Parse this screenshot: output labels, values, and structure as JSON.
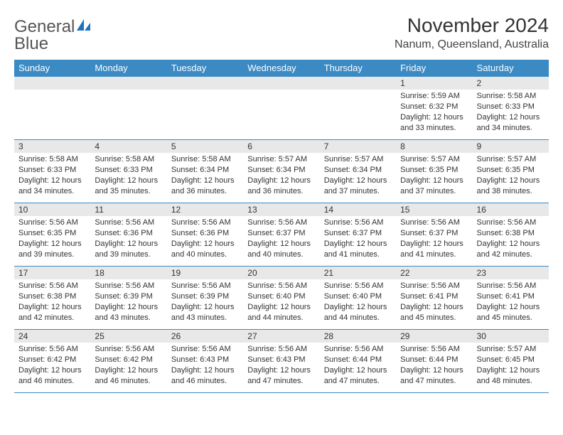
{
  "logo": {
    "word1": "General",
    "word2": "Blue"
  },
  "colors": {
    "brand_blue": "#3b8ac4",
    "logo_blue": "#1e73be",
    "band_gray": "#e8e8e8",
    "text": "#333333"
  },
  "title": "November 2024",
  "location": "Nanum, Queensland, Australia",
  "days_of_week": [
    "Sunday",
    "Monday",
    "Tuesday",
    "Wednesday",
    "Thursday",
    "Friday",
    "Saturday"
  ],
  "weeks": [
    [
      {
        "empty": true
      },
      {
        "empty": true
      },
      {
        "empty": true
      },
      {
        "empty": true
      },
      {
        "empty": true
      },
      {
        "date": "1",
        "sunrise": "Sunrise: 5:59 AM",
        "sunset": "Sunset: 6:32 PM",
        "daylight1": "Daylight: 12 hours",
        "daylight2": "and 33 minutes."
      },
      {
        "date": "2",
        "sunrise": "Sunrise: 5:58 AM",
        "sunset": "Sunset: 6:33 PM",
        "daylight1": "Daylight: 12 hours",
        "daylight2": "and 34 minutes."
      }
    ],
    [
      {
        "date": "3",
        "sunrise": "Sunrise: 5:58 AM",
        "sunset": "Sunset: 6:33 PM",
        "daylight1": "Daylight: 12 hours",
        "daylight2": "and 34 minutes."
      },
      {
        "date": "4",
        "sunrise": "Sunrise: 5:58 AM",
        "sunset": "Sunset: 6:33 PM",
        "daylight1": "Daylight: 12 hours",
        "daylight2": "and 35 minutes."
      },
      {
        "date": "5",
        "sunrise": "Sunrise: 5:58 AM",
        "sunset": "Sunset: 6:34 PM",
        "daylight1": "Daylight: 12 hours",
        "daylight2": "and 36 minutes."
      },
      {
        "date": "6",
        "sunrise": "Sunrise: 5:57 AM",
        "sunset": "Sunset: 6:34 PM",
        "daylight1": "Daylight: 12 hours",
        "daylight2": "and 36 minutes."
      },
      {
        "date": "7",
        "sunrise": "Sunrise: 5:57 AM",
        "sunset": "Sunset: 6:34 PM",
        "daylight1": "Daylight: 12 hours",
        "daylight2": "and 37 minutes."
      },
      {
        "date": "8",
        "sunrise": "Sunrise: 5:57 AM",
        "sunset": "Sunset: 6:35 PM",
        "daylight1": "Daylight: 12 hours",
        "daylight2": "and 37 minutes."
      },
      {
        "date": "9",
        "sunrise": "Sunrise: 5:57 AM",
        "sunset": "Sunset: 6:35 PM",
        "daylight1": "Daylight: 12 hours",
        "daylight2": "and 38 minutes."
      }
    ],
    [
      {
        "date": "10",
        "sunrise": "Sunrise: 5:56 AM",
        "sunset": "Sunset: 6:35 PM",
        "daylight1": "Daylight: 12 hours",
        "daylight2": "and 39 minutes."
      },
      {
        "date": "11",
        "sunrise": "Sunrise: 5:56 AM",
        "sunset": "Sunset: 6:36 PM",
        "daylight1": "Daylight: 12 hours",
        "daylight2": "and 39 minutes."
      },
      {
        "date": "12",
        "sunrise": "Sunrise: 5:56 AM",
        "sunset": "Sunset: 6:36 PM",
        "daylight1": "Daylight: 12 hours",
        "daylight2": "and 40 minutes."
      },
      {
        "date": "13",
        "sunrise": "Sunrise: 5:56 AM",
        "sunset": "Sunset: 6:37 PM",
        "daylight1": "Daylight: 12 hours",
        "daylight2": "and 40 minutes."
      },
      {
        "date": "14",
        "sunrise": "Sunrise: 5:56 AM",
        "sunset": "Sunset: 6:37 PM",
        "daylight1": "Daylight: 12 hours",
        "daylight2": "and 41 minutes."
      },
      {
        "date": "15",
        "sunrise": "Sunrise: 5:56 AM",
        "sunset": "Sunset: 6:37 PM",
        "daylight1": "Daylight: 12 hours",
        "daylight2": "and 41 minutes."
      },
      {
        "date": "16",
        "sunrise": "Sunrise: 5:56 AM",
        "sunset": "Sunset: 6:38 PM",
        "daylight1": "Daylight: 12 hours",
        "daylight2": "and 42 minutes."
      }
    ],
    [
      {
        "date": "17",
        "sunrise": "Sunrise: 5:56 AM",
        "sunset": "Sunset: 6:38 PM",
        "daylight1": "Daylight: 12 hours",
        "daylight2": "and 42 minutes."
      },
      {
        "date": "18",
        "sunrise": "Sunrise: 5:56 AM",
        "sunset": "Sunset: 6:39 PM",
        "daylight1": "Daylight: 12 hours",
        "daylight2": "and 43 minutes."
      },
      {
        "date": "19",
        "sunrise": "Sunrise: 5:56 AM",
        "sunset": "Sunset: 6:39 PM",
        "daylight1": "Daylight: 12 hours",
        "daylight2": "and 43 minutes."
      },
      {
        "date": "20",
        "sunrise": "Sunrise: 5:56 AM",
        "sunset": "Sunset: 6:40 PM",
        "daylight1": "Daylight: 12 hours",
        "daylight2": "and 44 minutes."
      },
      {
        "date": "21",
        "sunrise": "Sunrise: 5:56 AM",
        "sunset": "Sunset: 6:40 PM",
        "daylight1": "Daylight: 12 hours",
        "daylight2": "and 44 minutes."
      },
      {
        "date": "22",
        "sunrise": "Sunrise: 5:56 AM",
        "sunset": "Sunset: 6:41 PM",
        "daylight1": "Daylight: 12 hours",
        "daylight2": "and 45 minutes."
      },
      {
        "date": "23",
        "sunrise": "Sunrise: 5:56 AM",
        "sunset": "Sunset: 6:41 PM",
        "daylight1": "Daylight: 12 hours",
        "daylight2": "and 45 minutes."
      }
    ],
    [
      {
        "date": "24",
        "sunrise": "Sunrise: 5:56 AM",
        "sunset": "Sunset: 6:42 PM",
        "daylight1": "Daylight: 12 hours",
        "daylight2": "and 46 minutes."
      },
      {
        "date": "25",
        "sunrise": "Sunrise: 5:56 AM",
        "sunset": "Sunset: 6:42 PM",
        "daylight1": "Daylight: 12 hours",
        "daylight2": "and 46 minutes."
      },
      {
        "date": "26",
        "sunrise": "Sunrise: 5:56 AM",
        "sunset": "Sunset: 6:43 PM",
        "daylight1": "Daylight: 12 hours",
        "daylight2": "and 46 minutes."
      },
      {
        "date": "27",
        "sunrise": "Sunrise: 5:56 AM",
        "sunset": "Sunset: 6:43 PM",
        "daylight1": "Daylight: 12 hours",
        "daylight2": "and 47 minutes."
      },
      {
        "date": "28",
        "sunrise": "Sunrise: 5:56 AM",
        "sunset": "Sunset: 6:44 PM",
        "daylight1": "Daylight: 12 hours",
        "daylight2": "and 47 minutes."
      },
      {
        "date": "29",
        "sunrise": "Sunrise: 5:56 AM",
        "sunset": "Sunset: 6:44 PM",
        "daylight1": "Daylight: 12 hours",
        "daylight2": "and 47 minutes."
      },
      {
        "date": "30",
        "sunrise": "Sunrise: 5:57 AM",
        "sunset": "Sunset: 6:45 PM",
        "daylight1": "Daylight: 12 hours",
        "daylight2": "and 48 minutes."
      }
    ]
  ]
}
